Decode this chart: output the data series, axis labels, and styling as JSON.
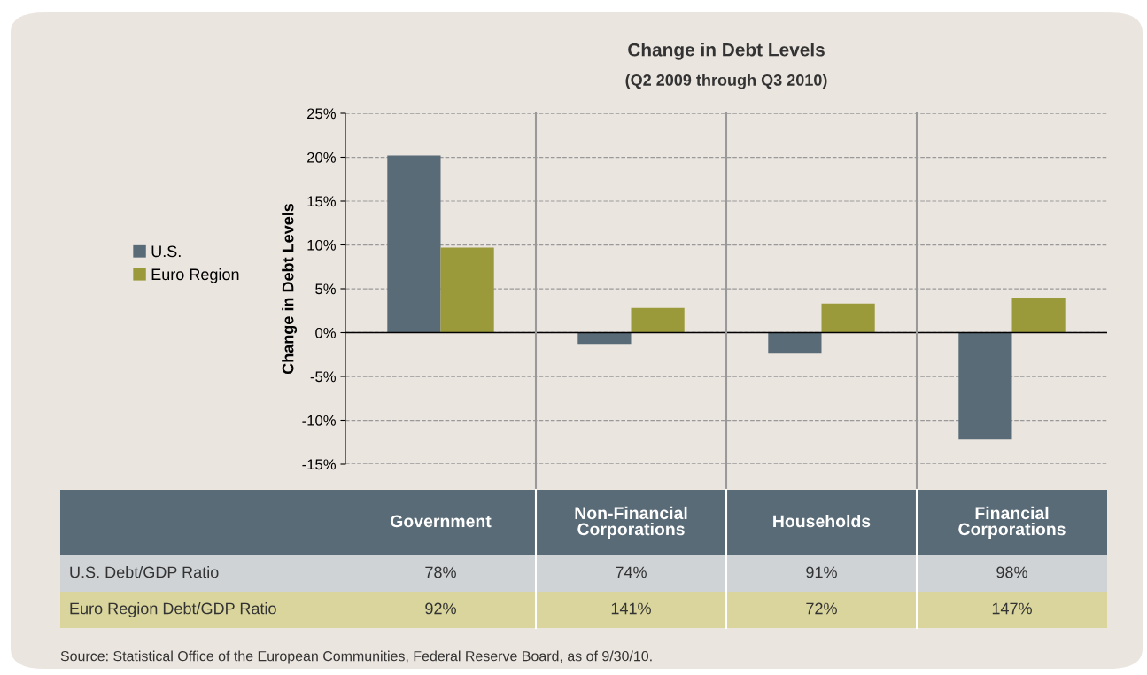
{
  "chart_data": {
    "type": "bar",
    "title": "Change in Debt Levels",
    "subtitle": "(Q2 2009 through Q3 2010)",
    "ylabel": "Change in Debt Levels",
    "categories": [
      "Government",
      "Non-Financial\nCorporations",
      "Households",
      "Financial\nCorporations"
    ],
    "series": [
      {
        "name": "U.S.",
        "color": "#5a6b78",
        "values": [
          20.2,
          -1.3,
          -2.4,
          -12.2
        ]
      },
      {
        "name": "Euro Region",
        "color": "#9a9a3a",
        "values": [
          9.7,
          2.8,
          3.3,
          4.0
        ]
      }
    ],
    "ylim": [
      -15,
      25
    ],
    "yticks": [
      {
        "value": -15,
        "label": "-15%"
      },
      {
        "value": -10,
        "label": "-10%"
      },
      {
        "value": -5,
        "label": "-5%"
      },
      {
        "value": 0,
        "label": "0%"
      },
      {
        "value": 5,
        "label": "5%"
      },
      {
        "value": 10,
        "label": "10%"
      },
      {
        "value": 15,
        "label": "15%"
      },
      {
        "value": 20,
        "label": "20%"
      },
      {
        "value": 25,
        "label": "25%"
      }
    ],
    "grid": "y",
    "legend": "left",
    "annotations": [
      "U.S. Debt/GDP Ratio",
      "78%",
      "74%",
      "91%",
      "98%",
      "Euro Region Debt/GDP Ratio",
      "92%",
      "141%",
      "72%",
      "147%",
      "Source: Statistical Office of the European Communities, Federal Reserve Board, as of 9/30/10."
    ]
  }
}
